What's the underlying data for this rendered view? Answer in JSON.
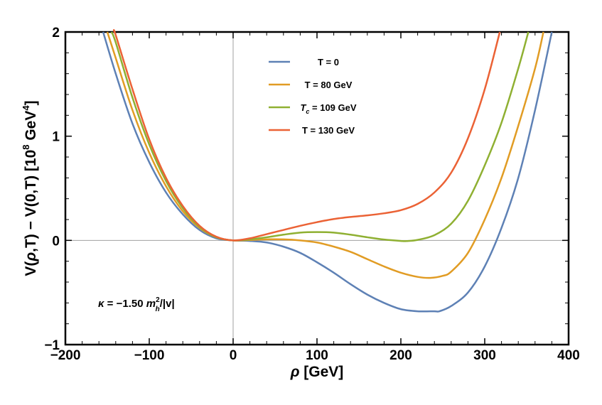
{
  "chart_data": {
    "type": "line",
    "xlabel": "ρ [GeV]",
    "ylabel": "V(ρ,T) − V(0,T) [10⁸ GeV⁴]",
    "xlim": [
      -200,
      400
    ],
    "ylim": [
      -1,
      2
    ],
    "xticks": [
      "−200",
      "−100",
      "0",
      "100",
      "200",
      "300",
      "400"
    ],
    "yticks": [
      "−1",
      "0",
      "1",
      "2"
    ],
    "grid": false,
    "legend_position": "top-center",
    "annotation": "κ = −1.50 m_h²/|v|",
    "series": [
      {
        "name": "T = 0",
        "color": "#5e81b5",
        "x": [
          -155,
          -140,
          -120,
          -100,
          -80,
          -60,
          -40,
          -20,
          0,
          20,
          40,
          60,
          80,
          100,
          120,
          140,
          160,
          180,
          200,
          220,
          240,
          246,
          260,
          280,
          300,
          320,
          340,
          360,
          380
        ],
        "y": [
          2.0,
          1.6,
          1.12,
          0.75,
          0.46,
          0.25,
          0.1,
          0.02,
          0.0,
          -0.005,
          -0.02,
          -0.06,
          -0.12,
          -0.21,
          -0.31,
          -0.42,
          -0.52,
          -0.6,
          -0.66,
          -0.68,
          -0.68,
          -0.68,
          -0.63,
          -0.5,
          -0.25,
          0.12,
          0.6,
          1.25,
          2.0
        ]
      },
      {
        "name": "T = 80 GeV",
        "color": "#e19c24",
        "x": [
          -150,
          -140,
          -120,
          -100,
          -80,
          -60,
          -40,
          -20,
          0,
          20,
          40,
          60,
          80,
          100,
          120,
          140,
          160,
          180,
          200,
          220,
          235,
          250,
          260,
          280,
          300,
          320,
          340,
          360,
          370
        ],
        "y": [
          2.0,
          1.75,
          1.25,
          0.84,
          0.52,
          0.28,
          0.12,
          0.03,
          0.0,
          0.004,
          0.01,
          0.01,
          0.0,
          -0.02,
          -0.06,
          -0.11,
          -0.18,
          -0.25,
          -0.31,
          -0.35,
          -0.36,
          -0.34,
          -0.3,
          -0.12,
          0.2,
          0.6,
          1.1,
          1.65,
          2.0
        ]
      },
      {
        "name": "T_c = 109 GeV",
        "color": "#8fb032",
        "x": [
          -145,
          -140,
          -120,
          -100,
          -80,
          -60,
          -40,
          -20,
          0,
          20,
          40,
          60,
          80,
          100,
          120,
          140,
          160,
          180,
          200,
          207,
          220,
          240,
          260,
          280,
          300,
          320,
          340,
          352
        ],
        "y": [
          2.0,
          1.9,
          1.37,
          0.92,
          0.57,
          0.31,
          0.13,
          0.03,
          0.0,
          0.01,
          0.03,
          0.055,
          0.075,
          0.08,
          0.075,
          0.055,
          0.03,
          0.008,
          -0.005,
          -0.006,
          0.005,
          0.05,
          0.16,
          0.38,
          0.72,
          1.13,
          1.65,
          2.0
        ]
      },
      {
        "name": "T = 130 GeV",
        "color": "#eb6235",
        "x": [
          -142,
          -140,
          -120,
          -100,
          -80,
          -60,
          -40,
          -20,
          0,
          20,
          40,
          60,
          80,
          100,
          120,
          140,
          160,
          180,
          200,
          220,
          240,
          260,
          280,
          300,
          318
        ],
        "y": [
          2.0,
          1.97,
          1.45,
          0.97,
          0.6,
          0.33,
          0.14,
          0.035,
          0.0,
          0.02,
          0.06,
          0.1,
          0.14,
          0.175,
          0.205,
          0.225,
          0.24,
          0.26,
          0.29,
          0.35,
          0.46,
          0.65,
          0.98,
          1.45,
          2.0
        ]
      }
    ]
  }
}
